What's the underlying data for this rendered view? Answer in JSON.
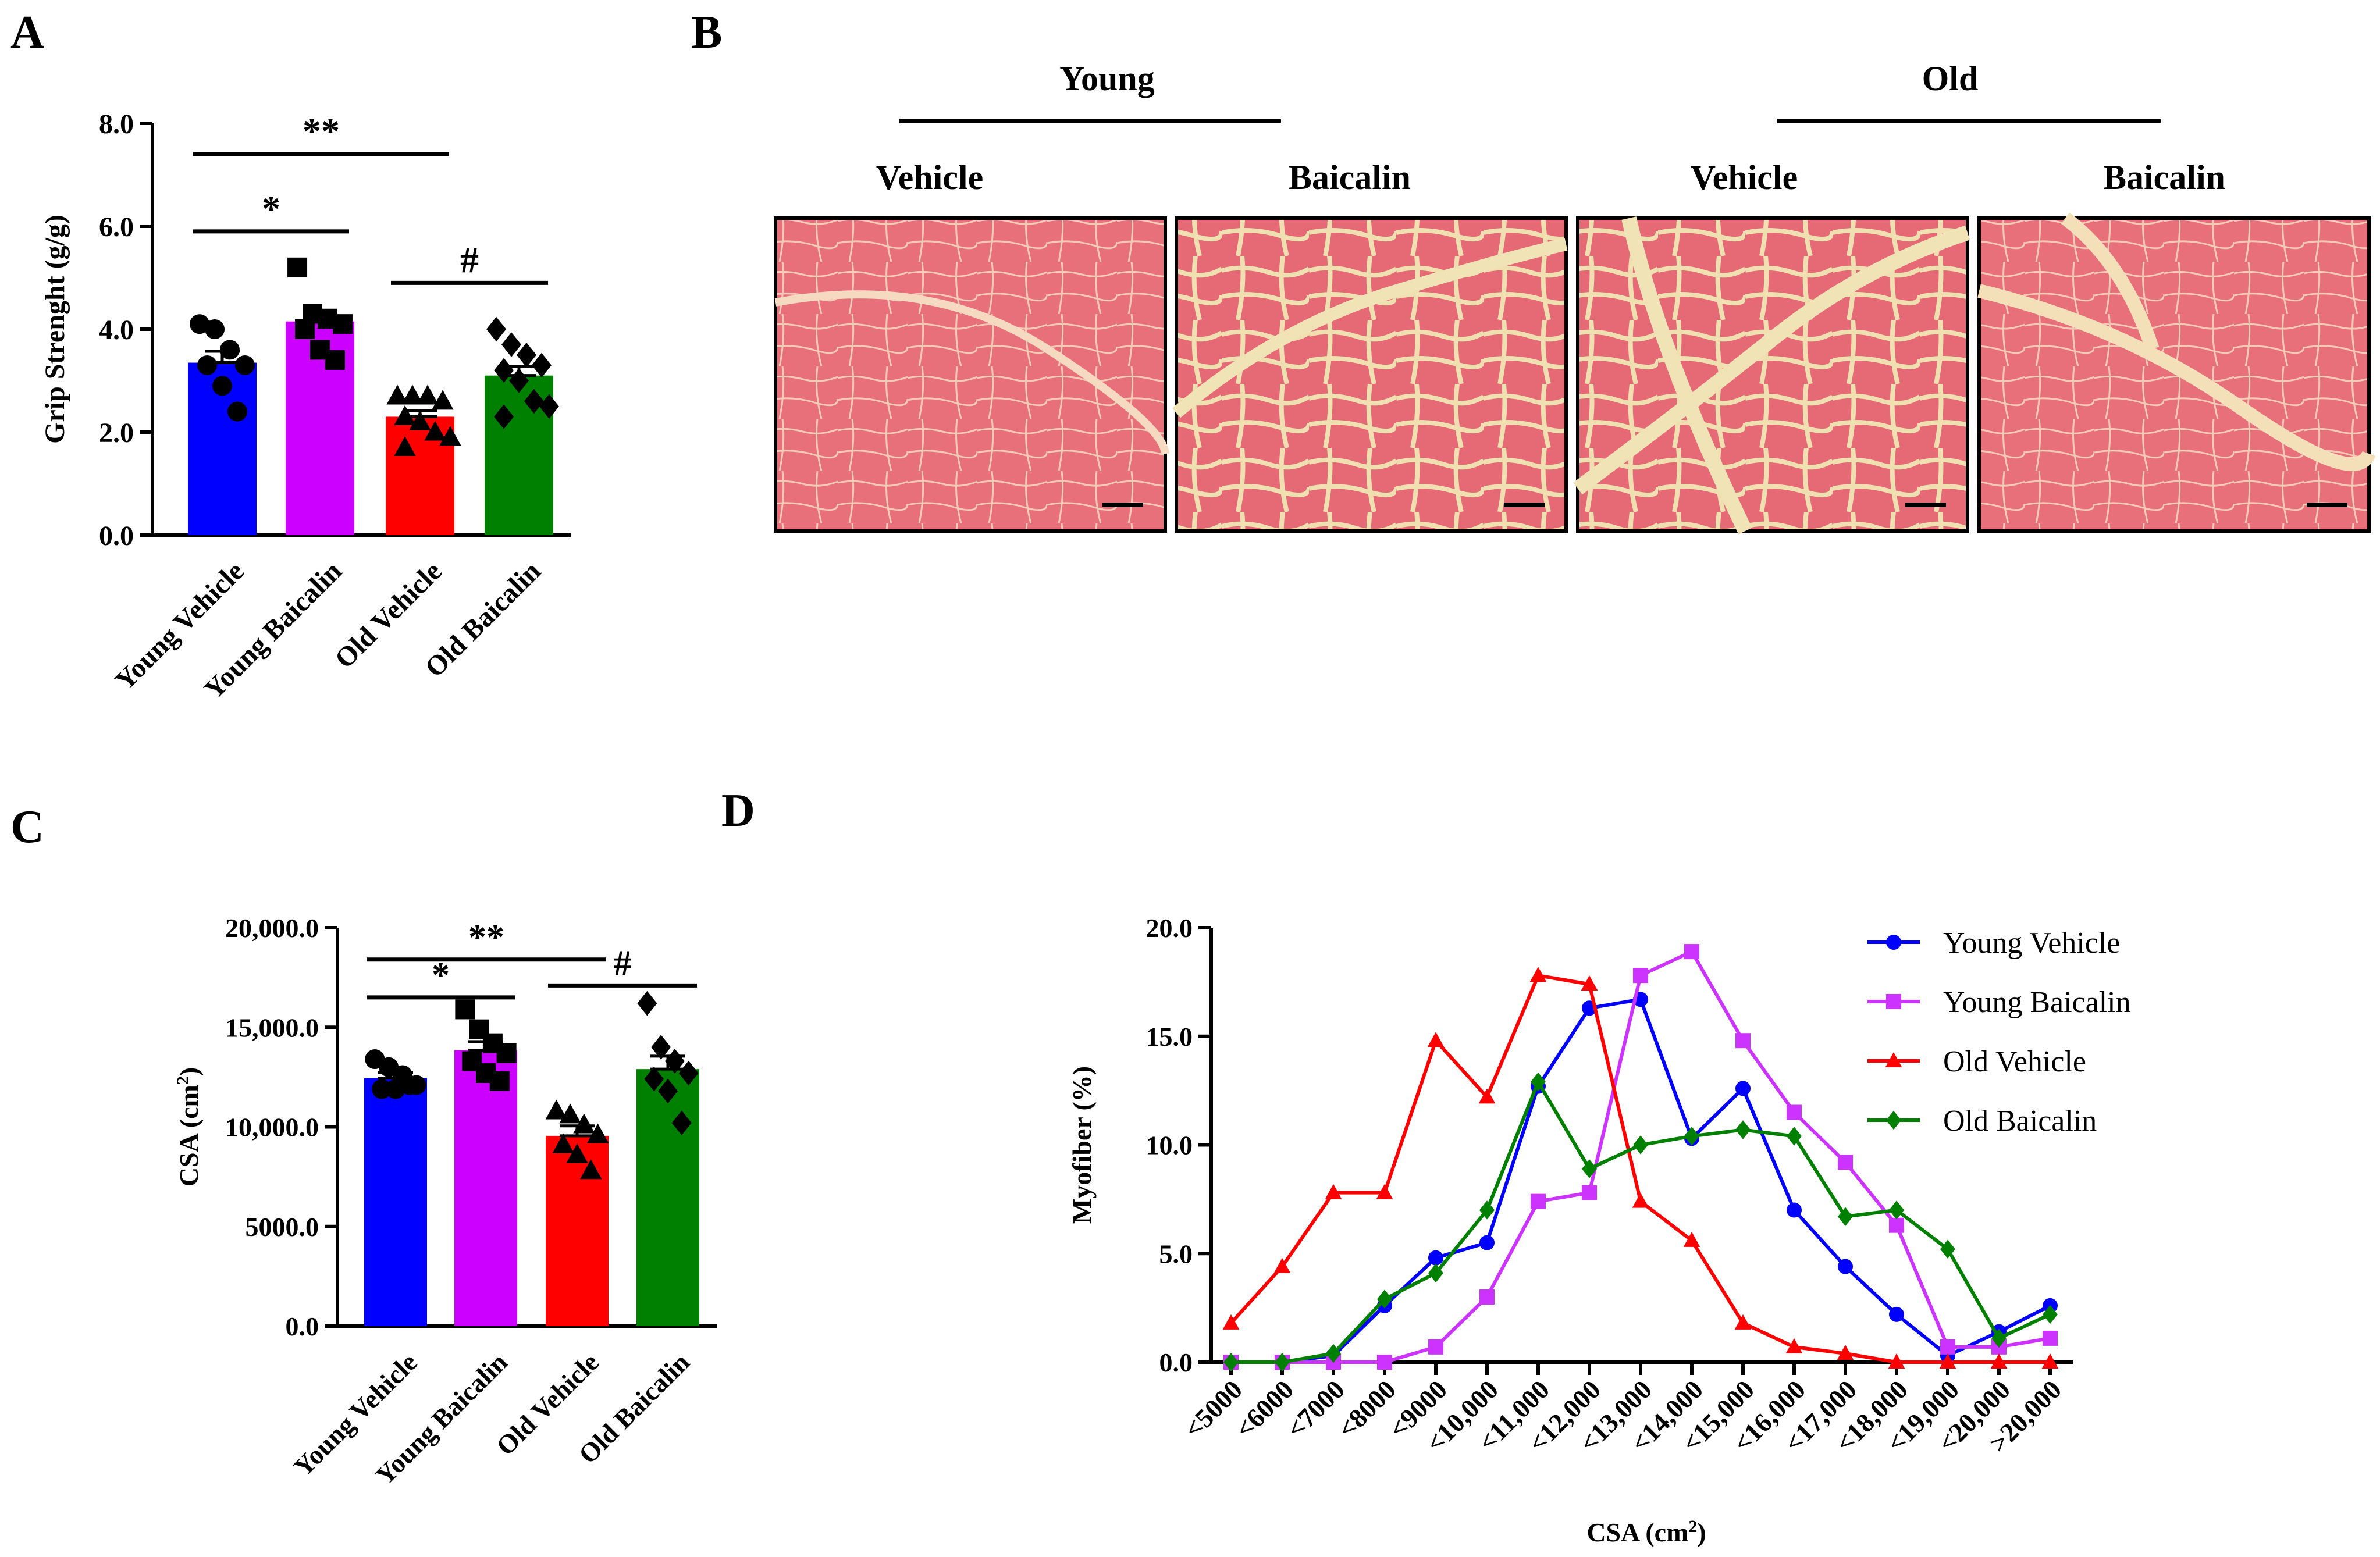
{
  "panels": {
    "a": {
      "letter": "A"
    },
    "b": {
      "letter": "B"
    },
    "c": {
      "letter": "C"
    },
    "d": {
      "letter": "D"
    }
  },
  "histology": {
    "group_young": "Young",
    "group_old": "Old",
    "vehicle": "Vehicle",
    "baicalin": "Baicalin",
    "tissue_color": "#e8707a",
    "background_color": "#efe6b8"
  },
  "colors": {
    "young_vehicle": "#0000ff",
    "young_baicalin": "#cc00ff",
    "old_vehicle": "#ff0000",
    "old_baicalin": "#008000"
  },
  "chart_data": [
    {
      "id": "A",
      "type": "bar",
      "ylabel": "Grip Strenght (g/g)",
      "ylim": [
        0,
        8
      ],
      "yticks": [
        "0.0",
        "2.0",
        "4.0",
        "6.0",
        "8.0"
      ],
      "yticks_values": [
        0,
        2,
        4,
        6,
        8
      ],
      "categories": [
        "Young Vehicle",
        "Young Baicalin",
        "Old Vehicle",
        "Old Baicalin"
      ],
      "values": [
        3.35,
        4.15,
        2.3,
        3.1
      ],
      "errors": [
        0.22,
        0.22,
        0.12,
        0.18
      ],
      "points": [
        [
          4.1,
          4.0,
          3.6,
          3.3,
          3.3,
          2.9,
          2.4
        ],
        [
          5.2,
          4.3,
          4.2,
          4.1,
          4.0,
          3.6,
          3.4
        ],
        [
          2.7,
          2.7,
          2.7,
          2.6,
          2.3,
          2.2,
          2.0,
          1.9,
          1.7
        ],
        [
          4.0,
          3.7,
          3.5,
          3.3,
          3.2,
          3.0,
          2.6,
          2.5,
          2.3
        ]
      ],
      "markers": [
        "circle",
        "square",
        "triangle",
        "diamond"
      ],
      "significance": [
        {
          "from": 0,
          "to": 2,
          "y": 7.4,
          "label": "**"
        },
        {
          "from": 0,
          "to": 1,
          "y": 5.9,
          "label": "*"
        },
        {
          "from": 2,
          "to": 3,
          "y": 4.9,
          "label": "#"
        }
      ]
    },
    {
      "id": "C",
      "type": "bar",
      "ylabel": "CSA (cm",
      "ylabel_sup": "2",
      "ylabel_close": ")",
      "ylim": [
        0,
        20000
      ],
      "yticks": [
        "0.0",
        "5000.0",
        "10,000.0",
        "15,000.0",
        "20,000.0"
      ],
      "yticks_values": [
        0,
        5000,
        10000,
        15000,
        20000
      ],
      "categories": [
        "Young Vehicle",
        "Young Baicalin",
        "Old Vehicle",
        "Old Baicalin"
      ],
      "values": [
        12450,
        13850,
        9550,
        12900
      ],
      "errors": [
        280,
        430,
        500,
        650
      ],
      "points": [
        [
          13400,
          13000,
          12600,
          12100,
          11900,
          11900,
          12100
        ],
        [
          15900,
          14900,
          14200,
          13700,
          13300,
          12700,
          12300
        ],
        [
          10800,
          10600,
          10100,
          9600,
          9100,
          8600,
          7800
        ],
        [
          16200,
          14000,
          13300,
          12700,
          12400,
          11800,
          10200
        ]
      ],
      "markers": [
        "circle",
        "square",
        "triangle",
        "diamond"
      ],
      "significance": [
        {
          "from": 0,
          "to": 2,
          "y": 18400,
          "label": "**"
        },
        {
          "from": 0,
          "to": 1,
          "y": 16500,
          "label": "*"
        },
        {
          "from": 2,
          "to": 3,
          "y": 17100,
          "label": "#"
        }
      ]
    },
    {
      "id": "D",
      "type": "line",
      "xlabel": "CSA (cm",
      "xlabel_sup": "2",
      "xlabel_close": ")",
      "ylabel": "Myofiber (%)",
      "ylim": [
        0,
        20
      ],
      "yticks": [
        "0.0",
        "5.0",
        "10.0",
        "15.0",
        "20.0"
      ],
      "yticks_values": [
        0,
        5,
        10,
        15,
        20
      ],
      "categories": [
        "<5000",
        "<6000",
        "<7000",
        "<8000",
        "<9000",
        "<10,000",
        "<11,000",
        "<12,000",
        "<13,000",
        "<14,000",
        "<15,000",
        "<16,000",
        "<17,000",
        "<18,000",
        "<19,000",
        "<20,000",
        ">20,000"
      ],
      "legend_position": "top-right",
      "series": [
        {
          "name": "Young Vehicle",
          "color": "#0000ff",
          "marker": "circle",
          "values": [
            0.0,
            0.0,
            0.3,
            2.6,
            4.8,
            5.5,
            12.7,
            16.3,
            16.7,
            10.3,
            12.6,
            7.0,
            4.4,
            2.2,
            0.3,
            1.4,
            2.6
          ]
        },
        {
          "name": "Young Baicalin",
          "color": "#cc33ff",
          "marker": "square",
          "values": [
            0.0,
            0.0,
            0.0,
            0.0,
            0.7,
            3.0,
            7.4,
            7.8,
            17.8,
            18.9,
            14.8,
            11.5,
            9.2,
            6.3,
            0.7,
            0.7,
            1.1
          ]
        },
        {
          "name": "Old Vehicle",
          "color": "#ff0000",
          "marker": "triangle",
          "values": [
            1.8,
            4.4,
            7.8,
            7.8,
            14.8,
            12.2,
            17.8,
            17.4,
            7.4,
            5.6,
            1.8,
            0.7,
            0.4,
            0.0,
            0.0,
            0.0,
            0.0
          ]
        },
        {
          "name": "Old Baicalin",
          "color": "#008000",
          "marker": "diamond",
          "values": [
            0.0,
            0.0,
            0.4,
            2.9,
            4.1,
            7.0,
            12.9,
            8.9,
            10.0,
            10.4,
            10.7,
            10.4,
            6.7,
            7.0,
            5.2,
            1.1,
            2.2
          ]
        }
      ]
    }
  ]
}
